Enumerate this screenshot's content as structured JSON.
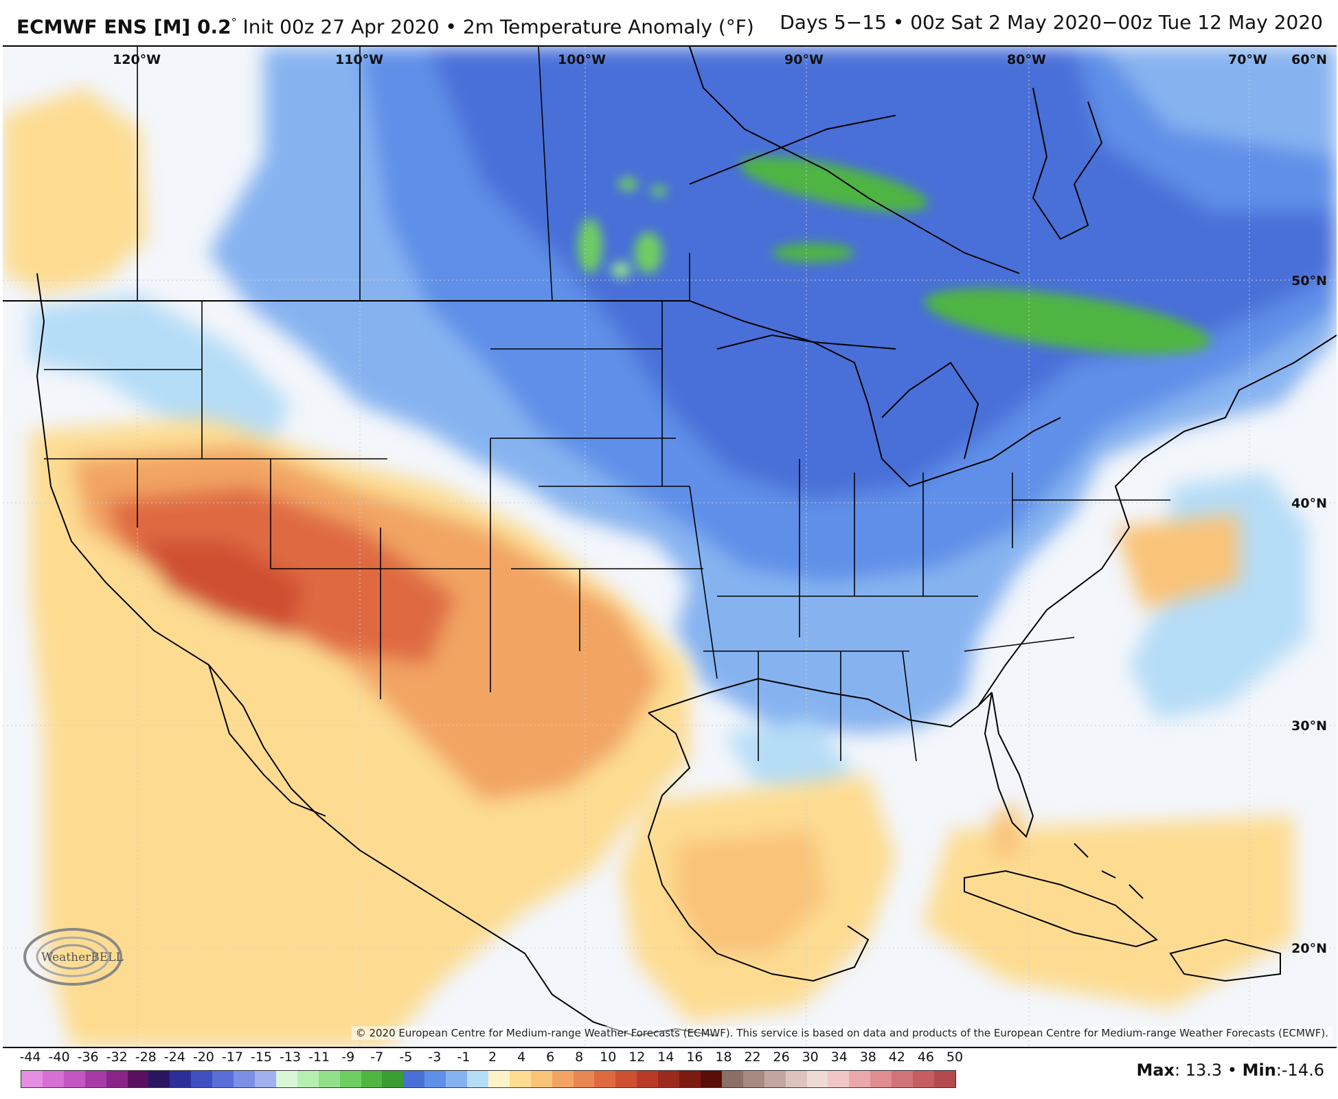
{
  "header": {
    "model": "ECMWF ENS [M] 0.2",
    "degree": "°",
    "init": " Init 00z 27 Apr 2020",
    "bullet": " • ",
    "field": "2m Temperature Anomaly (°F)",
    "valid": "Days 5−15 • 00z Sat 2 May 2020−00z Tue 12 May 2020"
  },
  "map": {
    "longitude_labels": [
      "120°W",
      "110°W",
      "100°W",
      "90°W",
      "80°W",
      "70°W"
    ],
    "latitude_labels": [
      "60°N",
      "50°N",
      "40°N",
      "30°N",
      "20°N"
    ],
    "copyright": "© 2020 European Centre for Medium-range Weather Forecasts (ECMWF). This service is based on data and products of the European Centre for Medium-range Weather Forecasts (ECMWF).",
    "logo_text": "WeatherBELL"
  },
  "legend": {
    "ticks": [
      "-44",
      "-40",
      "-36",
      "-32",
      "-28",
      "-24",
      "-20",
      "-17",
      "-15",
      "-13",
      "-11",
      "-9",
      "-7",
      "-5",
      "-3",
      "-1",
      "2",
      "4",
      "6",
      "8",
      "10",
      "12",
      "14",
      "16",
      "18",
      "22",
      "26",
      "30",
      "34",
      "38",
      "42",
      "46",
      "50"
    ],
    "colors": [
      "#e58de0",
      "#d870d4",
      "#c455c2",
      "#a83aa6",
      "#8a2488",
      "#5a1060",
      "#2a1660",
      "#2c2f9a",
      "#3f50c2",
      "#5a6ed8",
      "#7c8fe6",
      "#a2b0f0",
      "#d9f7d7",
      "#b7eeb2",
      "#93e08b",
      "#6fce62",
      "#50b542",
      "#3a9d32",
      "#4a70d8",
      "#5f8fe8",
      "#86b3f0",
      "#b6ddf7",
      "#fff2c8",
      "#fddc92",
      "#f9c378",
      "#f2a464",
      "#ea8651",
      "#df6a42",
      "#cf4f33",
      "#b83a27",
      "#9c2a1d",
      "#7d1a12",
      "#5a0e09",
      "#8c7066",
      "#a88a82",
      "#c4a6a0",
      "#dcc3be",
      "#eedbd8",
      "#f2c6c6",
      "#e9a9aa",
      "#df8d90",
      "#d27477",
      "#c55d61",
      "#b44a4e"
    ],
    "max_label": "Max",
    "max_value": ": 13.3",
    "sep": " • ",
    "min_label": "Min",
    "min_value": ":-14.6"
  }
}
